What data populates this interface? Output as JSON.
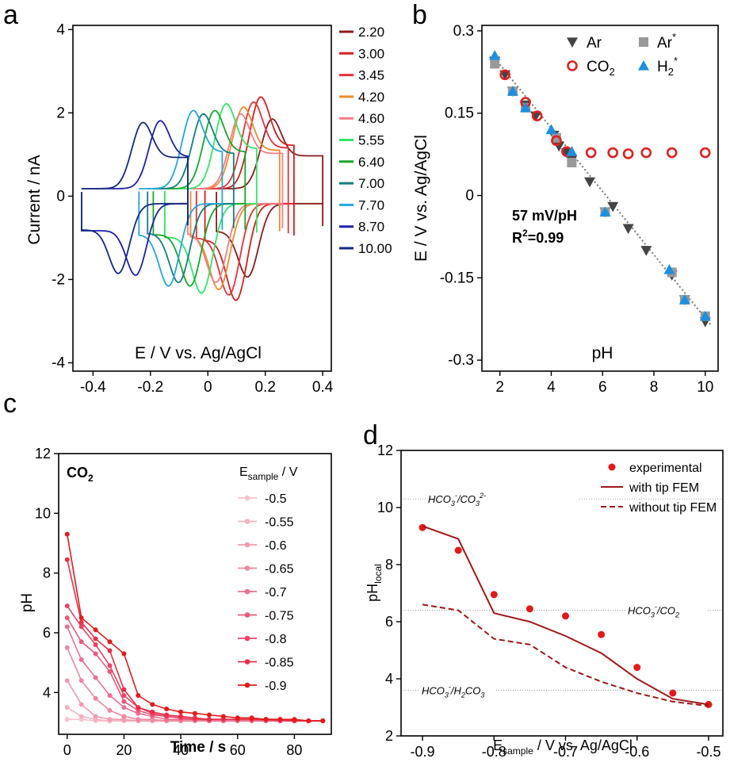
{
  "panels": {
    "a": {
      "letter": "a",
      "chart_data": {
        "type": "line",
        "xlabel": "E / V vs. Ag/AgCl",
        "ylabel": "Current / nA",
        "xlim": [
          -0.47,
          0.43
        ],
        "ylim": [
          -4.2,
          4.1
        ],
        "xticks": [
          -0.4,
          -0.2,
          0,
          0.2,
          0.4
        ],
        "xtick_labels": [
          "-0.4",
          "-0.2",
          "0",
          "0.2",
          "0.4"
        ],
        "yticks": [
          -4,
          -2,
          0,
          2,
          4
        ],
        "ytick_labels": [
          "-4",
          "-2",
          "0",
          "2",
          "4"
        ],
        "legend_position": "right",
        "series": [
          {
            "name": "2.20",
            "color": "#8b1c1c",
            "e0": 0.18,
            "ipeak": 2.05,
            "xmin": 0.03,
            "xmax": 0.4
          },
          {
            "name": "3.00",
            "color": "#d91e1e",
            "e0": 0.14,
            "ipeak": 2.7,
            "xmin": -0.01,
            "xmax": 0.3
          },
          {
            "name": "3.45",
            "color": "#e8303a",
            "e0": 0.115,
            "ipeak": 2.55,
            "xmin": -0.04,
            "xmax": 0.28
          },
          {
            "name": "4.20",
            "color": "#f28a2e",
            "e0": 0.08,
            "ipeak": 2.4,
            "xmin": -0.06,
            "xmax": 0.25
          },
          {
            "name": "4.60",
            "color": "#f47d86",
            "e0": 0.07,
            "ipeak": 2.2,
            "xmin": -0.07,
            "xmax": 0.26
          },
          {
            "name": "5.55",
            "color": "#2ee866",
            "e0": 0.02,
            "ipeak": 2.5,
            "xmin": -0.15,
            "xmax": 0.17
          },
          {
            "name": "6.40",
            "color": "#17a82a",
            "e0": -0.02,
            "ipeak": 2.3,
            "xmin": -0.19,
            "xmax": 0.13
          },
          {
            "name": "7.00",
            "color": "#137e7e",
            "e0": -0.06,
            "ipeak": 2.2,
            "xmin": -0.21,
            "xmax": 0.09
          },
          {
            "name": "7.70",
            "color": "#23a7dc",
            "e0": -0.095,
            "ipeak": 2.3,
            "xmin": -0.24,
            "xmax": 0.05
          },
          {
            "name": "8.70",
            "color": "#1f1fb0",
            "e0": -0.21,
            "ipeak": 2.0,
            "xmin": -0.44,
            "xmax": -0.07
          },
          {
            "name": "10.00",
            "color": "#142a80",
            "e0": -0.27,
            "ipeak": 1.95,
            "xmin": -0.44,
            "xmax": -0.07
          }
        ]
      }
    },
    "b": {
      "letter": "b",
      "annotation_slope": "57 mV/pH",
      "annotation_r2_label": "R",
      "annotation_r2_sup": "2",
      "annotation_r2_value": "=0.99",
      "legend_labels": {
        "ar": "Ar",
        "ar_star": "Ar",
        "co2": "CO",
        "co2_sub": "2",
        "h2": "H",
        "h2_sub": "2",
        "star": "*"
      },
      "chart_data": {
        "type": "scatter",
        "xlabel": "pH",
        "ylabel": "E / V vs. Ag/AgCl",
        "xlim": [
          1.3,
          10.5
        ],
        "ylim": [
          -0.32,
          0.31
        ],
        "xticks": [
          2,
          4,
          6,
          8,
          10
        ],
        "xtick_labels": [
          "2",
          "4",
          "6",
          "8",
          "10"
        ],
        "yticks": [
          -0.3,
          -0.15,
          0,
          0.15,
          0.3
        ],
        "ytick_labels": [
          "-0.3",
          "-0.15",
          "0",
          "0.15",
          "0.3"
        ],
        "legend_position": "top-right",
        "fit_line": {
          "x": [
            1.8,
            10.2
          ],
          "y": [
            0.25,
            -0.235
          ],
          "color": "#777777"
        },
        "series": [
          {
            "name": "Ar",
            "marker": "triangle-down",
            "color": "#444444",
            "x": [
              1.8,
              2.2,
              2.5,
              3.0,
              3.4,
              4.1,
              4.3,
              4.6,
              4.8,
              5.5,
              6.1,
              6.4,
              7.0,
              7.7,
              8.7,
              9.2,
              10.0
            ],
            "y": [
              0.245,
              0.22,
              0.19,
              0.165,
              0.145,
              0.11,
              0.09,
              0.078,
              0.065,
              0.025,
              -0.03,
              -0.02,
              -0.06,
              -0.1,
              -0.145,
              -0.19,
              -0.23
            ]
          },
          {
            "name": "Ar*",
            "marker": "square",
            "color": "#999999",
            "x": [
              1.8,
              2.5,
              3.0,
              4.2,
              4.8,
              6.1,
              8.7,
              9.2,
              10.0
            ],
            "y": [
              0.24,
              0.19,
              0.16,
              0.105,
              0.06,
              -0.03,
              -0.14,
              -0.19,
              -0.22
            ]
          },
          {
            "name": "CO2",
            "marker": "circle-open",
            "color": "#e02020",
            "x": [
              2.2,
              3.0,
              3.45,
              4.2,
              4.6,
              5.55,
              6.4,
              7.0,
              7.7,
              8.7,
              10.0
            ],
            "y": [
              0.22,
              0.17,
              0.145,
              0.1,
              0.08,
              0.078,
              0.078,
              0.076,
              0.078,
              0.078,
              0.078
            ]
          },
          {
            "name": "H2*",
            "marker": "triangle-up",
            "color": "#1e8fe0",
            "x": [
              1.8,
              2.5,
              3.0,
              4.0,
              4.8,
              6.1,
              8.6,
              9.2,
              10.0
            ],
            "y": [
              0.255,
              0.19,
              0.16,
              0.12,
              0.08,
              -0.03,
              -0.135,
              -0.19,
              -0.22
            ]
          }
        ]
      }
    },
    "c": {
      "letter": "c",
      "inset_label": "CO",
      "inset_sub": "2",
      "legend_title_main": "E",
      "legend_title_sub": "sample",
      "legend_title_unit": " / V",
      "chart_data": {
        "type": "line",
        "xlabel": "Time / s",
        "ylabel": "pH",
        "xlim": [
          -3,
          93
        ],
        "ylim": [
          2.6,
          12
        ],
        "xticks": [
          0,
          20,
          40,
          60,
          80
        ],
        "xtick_labels": [
          "0",
          "20",
          "40",
          "60",
          "80"
        ],
        "yticks": [
          4,
          6,
          8,
          10,
          12
        ],
        "ytick_labels": [
          "4",
          "6",
          "8",
          "10",
          "12"
        ],
        "legend_position": "right",
        "x": [
          0,
          5,
          10,
          15,
          20,
          25,
          30,
          35,
          40,
          45,
          50,
          55,
          60,
          65,
          70,
          75,
          80,
          85,
          90
        ],
        "series": [
          {
            "name": "-0.5",
            "color": "#f7c3cf",
            "values": [
              3.1,
              3.1,
              3.05,
              3.05,
              3.05,
              3.05,
              3.05,
              3.05,
              3.05,
              3.05,
              3.05,
              3.05,
              3.05,
              3.05,
              3.05,
              3.05,
              3.05,
              3.05,
              3.05
            ]
          },
          {
            "name": "-0.55",
            "color": "#f5b0c0",
            "values": [
              3.5,
              3.2,
              3.1,
              3.05,
              3.05,
              3.05,
              3.05,
              3.05,
              3.05,
              3.05,
              3.05,
              3.05,
              3.05,
              3.05,
              3.05,
              3.05,
              3.05,
              3.05,
              3.05
            ]
          },
          {
            "name": "-0.6",
            "color": "#f29cb0",
            "values": [
              4.4,
              3.6,
              3.2,
              3.1,
              3.1,
              3.05,
              3.05,
              3.05,
              3.05,
              3.05,
              3.05,
              3.05,
              3.05,
              3.05,
              3.05,
              3.05,
              3.05,
              3.05,
              3.05
            ]
          },
          {
            "name": "-0.65",
            "color": "#ef87a0",
            "values": [
              5.5,
              4.4,
              3.8,
              3.4,
              3.2,
              3.1,
              3.1,
              3.05,
              3.05,
              3.05,
              3.05,
              3.05,
              3.05,
              3.05,
              3.05,
              3.05,
              3.05,
              3.05,
              3.05
            ]
          },
          {
            "name": "-0.7",
            "color": "#ec7090",
            "values": [
              6.2,
              5.1,
              4.5,
              3.9,
              3.5,
              3.3,
              3.2,
              3.1,
              3.1,
              3.1,
              3.05,
              3.05,
              3.05,
              3.05,
              3.05,
              3.05,
              3.05,
              3.05,
              3.05
            ]
          },
          {
            "name": "-0.75",
            "color": "#ea5a7a",
            "values": [
              6.5,
              5.7,
              5.3,
              4.7,
              3.7,
              3.4,
              3.25,
              3.2,
              3.15,
              3.1,
              3.1,
              3.1,
              3.1,
              3.1,
              3.05,
              3.05,
              3.05,
              3.05,
              3.05
            ]
          },
          {
            "name": "-0.8",
            "color": "#e84464",
            "values": [
              6.9,
              6.2,
              5.6,
              4.9,
              3.9,
              3.5,
              3.3,
              3.2,
              3.15,
              3.1,
              3.1,
              3.1,
              3.1,
              3.1,
              3.1,
              3.05,
              3.05,
              3.05,
              3.05
            ]
          },
          {
            "name": "-0.85",
            "color": "#e53048",
            "values": [
              8.45,
              6.35,
              5.8,
              5.4,
              4.1,
              3.5,
              3.35,
              3.25,
              3.2,
              3.15,
              3.1,
              3.1,
              3.1,
              3.1,
              3.1,
              3.1,
              3.05,
              3.05,
              3.05
            ]
          },
          {
            "name": "-0.9",
            "color": "#e31a1a",
            "values": [
              9.3,
              6.5,
              6.1,
              5.7,
              5.3,
              3.9,
              3.6,
              3.45,
              3.35,
              3.3,
              3.25,
              3.2,
              3.15,
              3.15,
              3.1,
              3.1,
              3.1,
              3.05,
              3.05
            ]
          }
        ]
      }
    },
    "d": {
      "letter": "d",
      "ylabel_main": "pH",
      "ylabel_sub": "local",
      "xlabel_main": "E",
      "xlabel_sub": "sample",
      "xlabel_rest": " / V vs. Ag/AgCl",
      "ref_lines": [
        {
          "y": 10.3,
          "label_parts": [
            "HCO",
            "3",
            "-",
            "/CO",
            "3",
            "2-"
          ]
        },
        {
          "y": 6.4,
          "label_parts": [
            "HCO",
            "3",
            "-",
            "/CO",
            "2",
            ""
          ]
        },
        {
          "y": 3.6,
          "label_parts": [
            "HCO",
            "3",
            "-",
            "/H",
            "2",
            "CO",
            "3"
          ]
        }
      ],
      "chart_data": {
        "type": "line",
        "xlabel": "E sample / V vs. Ag/AgCl",
        "ylabel": "pH local",
        "xlim": [
          -0.93,
          -0.48
        ],
        "ylim": [
          2,
          12
        ],
        "xticks": [
          -0.9,
          -0.8,
          -0.7,
          -0.6,
          -0.5
        ],
        "xtick_labels": [
          "-0.9",
          "-0.8",
          "-0.7",
          "-0.6",
          "-0.5"
        ],
        "yticks": [
          2,
          4,
          6,
          8,
          10,
          12
        ],
        "ytick_labels": [
          "2",
          "4",
          "6",
          "8",
          "10",
          "12"
        ],
        "legend_position": "top-right",
        "series": [
          {
            "name": "experimental",
            "style": "points",
            "color": "#e31a1a",
            "x": [
              -0.9,
              -0.85,
              -0.8,
              -0.75,
              -0.7,
              -0.65,
              -0.6,
              -0.55,
              -0.5
            ],
            "y": [
              9.3,
              8.5,
              6.95,
              6.45,
              6.2,
              5.55,
              4.4,
              3.5,
              3.1
            ]
          },
          {
            "name": "with tip FEM",
            "style": "solid",
            "color": "#a01818",
            "x": [
              -0.9,
              -0.85,
              -0.8,
              -0.75,
              -0.7,
              -0.65,
              -0.6,
              -0.55,
              -0.5
            ],
            "y": [
              9.35,
              8.9,
              6.3,
              6.0,
              5.5,
              4.9,
              4.0,
              3.3,
              3.1
            ]
          },
          {
            "name": "without tip FEM",
            "style": "dashed",
            "color": "#a01818",
            "x": [
              -0.9,
              -0.85,
              -0.8,
              -0.75,
              -0.7,
              -0.65,
              -0.6,
              -0.55,
              -0.5
            ],
            "y": [
              6.6,
              6.4,
              5.4,
              5.2,
              4.4,
              3.9,
              3.5,
              3.2,
              3.05
            ]
          }
        ]
      }
    }
  }
}
